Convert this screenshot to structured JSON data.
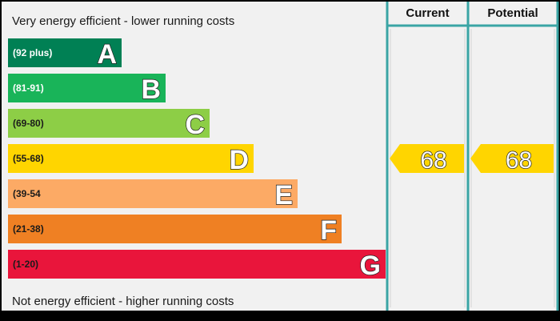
{
  "chart_data": {
    "type": "bar",
    "top_caption": "Very energy efficient - lower running costs",
    "bottom_caption": "Not energy efficient - higher running costs",
    "bands": [
      {
        "range": "(92 plus)",
        "letter": "A",
        "min": 92,
        "max": 100,
        "color": "#008054",
        "range_color": "#ffffff"
      },
      {
        "range": "(81-91)",
        "letter": "B",
        "min": 81,
        "max": 91,
        "color": "#19b459",
        "range_color": "#ffffff"
      },
      {
        "range": "(69-80)",
        "letter": "C",
        "min": 69,
        "max": 80,
        "color": "#8dce46",
        "range_color": "#1a1a1a"
      },
      {
        "range": "(55-68)",
        "letter": "D",
        "min": 55,
        "max": 68,
        "color": "#ffd500",
        "range_color": "#1a1a1a"
      },
      {
        "range": "(39-54",
        "letter": "E",
        "min": 39,
        "max": 54,
        "color": "#fcaa65",
        "range_color": "#1a1a1a"
      },
      {
        "range": "(21-38)",
        "letter": "F",
        "min": 21,
        "max": 38,
        "color": "#ef8023",
        "range_color": "#1a1a1a"
      },
      {
        "range": "(1-20)",
        "letter": "G",
        "min": 1,
        "max": 20,
        "color": "#e9153b",
        "range_color": "#1a1a1a"
      }
    ],
    "columns": [
      {
        "label": "Current",
        "value": 68,
        "band": "D"
      },
      {
        "label": "Potential",
        "value": 68,
        "band": "D"
      }
    ],
    "colors": {
      "panel_background": "#f1f1f1",
      "frame": "#000000",
      "column_divider": "#3aa5a5",
      "rating_arrow": "#ffd500"
    }
  }
}
